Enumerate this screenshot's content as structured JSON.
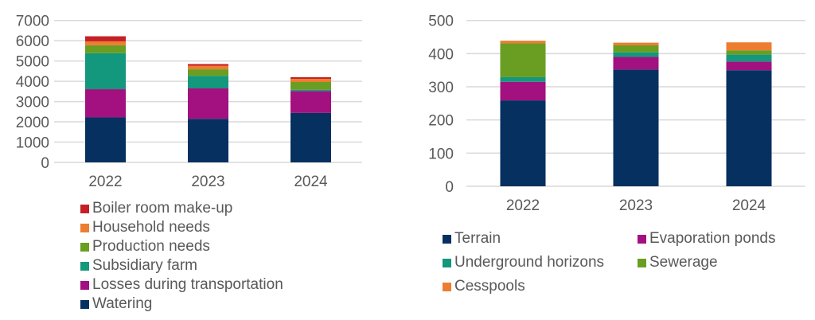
{
  "chart_data": [
    {
      "type": "bar",
      "stacked": true,
      "title": "",
      "xlabel": "",
      "ylabel": "",
      "categories": [
        "2022",
        "2023",
        "2024"
      ],
      "ylim": [
        0,
        7000
      ],
      "yticks": [
        "0",
        "1000",
        "2000",
        "3000",
        "4000",
        "5000",
        "6000",
        "7000"
      ],
      "grid": true,
      "legend_position": "bottom",
      "series": [
        {
          "name": "Watering",
          "color": "#06305F",
          "values": [
            2220,
            2150,
            2440
          ]
        },
        {
          "name": "Losses during transportation",
          "color": "#A2117F",
          "values": [
            1390,
            1500,
            1080
          ]
        },
        {
          "name": "Subsidiary farm",
          "color": "#13977D",
          "values": [
            1775,
            615,
            65
          ]
        },
        {
          "name": "Production needs",
          "color": "#6A9E22",
          "values": [
            390,
            325,
            380
          ]
        },
        {
          "name": "Household needs",
          "color": "#ED7D31",
          "values": [
            195,
            180,
            155
          ]
        },
        {
          "name": "Boiler room make-up",
          "color": "#C42026",
          "values": [
            250,
            80,
            80
          ]
        }
      ]
    },
    {
      "type": "bar",
      "stacked": true,
      "title": "",
      "xlabel": "",
      "ylabel": "",
      "categories": [
        "2022",
        "2023",
        "2024"
      ],
      "ylim": [
        0,
        500
      ],
      "yticks": [
        "0",
        "100",
        "200",
        "300",
        "400",
        "500"
      ],
      "grid": true,
      "legend_position": "bottom",
      "series": [
        {
          "name": "Terrain",
          "color": "#06305F",
          "values": [
            259,
            352,
            350
          ]
        },
        {
          "name": "Evaporation ponds",
          "color": "#A2117F",
          "values": [
            56,
            38,
            26
          ]
        },
        {
          "name": "Underground horizons",
          "color": "#13977D",
          "values": [
            14,
            14,
            21
          ]
        },
        {
          "name": "Sewerage",
          "color": "#6A9E22",
          "values": [
            102,
            21,
            13
          ]
        },
        {
          "name": "Cesspools",
          "color": "#ED7D31",
          "values": [
            8,
            8,
            24
          ]
        }
      ]
    }
  ],
  "legends": {
    "left": [
      "Boiler room make-up",
      "Household needs",
      "Production needs",
      "Subsidiary farm",
      "Losses during transportation",
      "Watering"
    ],
    "right": [
      "Terrain",
      "Evaporation ponds",
      "Underground horizons",
      "Sewerage",
      "Cesspools"
    ]
  }
}
